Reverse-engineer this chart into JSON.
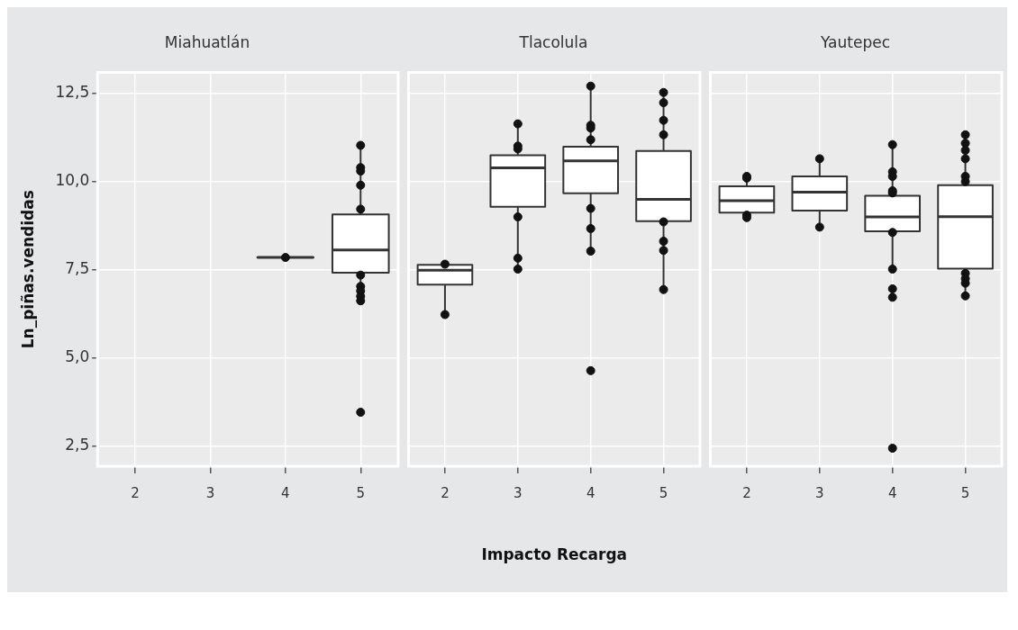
{
  "chart_data": [
    {
      "type": "box",
      "title": "Miahuatlán",
      "ylabel": "Ln_piñas.vendidas",
      "categories": [
        "2",
        "3",
        "4",
        "5"
      ],
      "ylim": [
        1.93,
        13.1
      ],
      "yticks": [
        {
          "value": 2.5,
          "label": "2,5"
        },
        {
          "value": 5,
          "label": "5,0"
        },
        {
          "value": 7.5,
          "label": "7,5"
        },
        {
          "value": 10,
          "label": "10,0"
        },
        {
          "value": 12.5,
          "label": "12,5"
        }
      ],
      "grid": true,
      "boxes": [
        null,
        null,
        {
          "low": 7.85,
          "q1": 7.85,
          "median": 7.85,
          "q3": 7.85,
          "high": 7.85,
          "outliers": [
            7.85
          ]
        },
        {
          "low": 6.62,
          "q1": 7.42,
          "median": 8.06,
          "q3": 9.07,
          "high": 11.03,
          "outliers": [
            11.03,
            10.4,
            10.3,
            9.9,
            9.22,
            7.35,
            7.03,
            6.9,
            6.75,
            6.62,
            3.46
          ]
        }
      ]
    },
    {
      "type": "box",
      "title": "Tlacolula",
      "xlabel": "Impacto Recarga",
      "categories": [
        "2",
        "3",
        "4",
        "5"
      ],
      "ylim": [
        1.93,
        13.1
      ],
      "yticks": [
        {
          "value": 2.5,
          "label": null
        },
        {
          "value": 5,
          "label": null
        },
        {
          "value": 7.5,
          "label": null
        },
        {
          "value": 10,
          "label": null
        },
        {
          "value": 12.5,
          "label": null
        }
      ],
      "grid": true,
      "tick_labels": "x",
      "boxes": [
        {
          "low": 6.23,
          "q1": 7.08,
          "median": 7.49,
          "q3": 7.64,
          "high": 7.64,
          "outliers": [
            7.66,
            6.23
          ]
        },
        {
          "low": 7.52,
          "q1": 9.29,
          "median": 10.39,
          "q3": 10.75,
          "high": 11.64,
          "outliers": [
            11.64,
            11.01,
            10.93,
            9.0,
            7.83,
            7.52
          ]
        },
        {
          "low": 8.03,
          "q1": 9.67,
          "median": 10.59,
          "q3": 10.99,
          "high": 12.71,
          "outliers": [
            12.71,
            11.6,
            11.52,
            11.19,
            9.24,
            8.67,
            8.03,
            4.64
          ]
        },
        {
          "low": 6.94,
          "q1": 8.88,
          "median": 9.5,
          "q3": 10.87,
          "high": 12.53,
          "outliers": [
            12.53,
            12.24,
            11.74,
            11.33,
            8.86,
            8.31,
            8.05,
            6.94
          ]
        }
      ]
    },
    {
      "type": "box",
      "title": "Yautepec",
      "categories": [
        "2",
        "3",
        "4",
        "5"
      ],
      "ylim": [
        1.93,
        13.1
      ],
      "yticks": [
        {
          "value": 2.5,
          "label": null
        },
        {
          "value": 5,
          "label": null
        },
        {
          "value": 7.5,
          "label": null
        },
        {
          "value": 10,
          "label": null
        },
        {
          "value": 12.5,
          "label": null
        }
      ],
      "grid": true,
      "tick_labels": "x",
      "boxes": [
        {
          "low": 8.98,
          "q1": 9.12,
          "median": 9.46,
          "q3": 9.87,
          "high": 10.15,
          "outliers": [
            10.15,
            10.1,
            9.05,
            8.98
          ]
        },
        {
          "low": 8.71,
          "q1": 9.18,
          "median": 9.7,
          "q3": 10.15,
          "high": 10.65,
          "outliers": [
            10.65,
            8.71
          ]
        },
        {
          "low": 7.52,
          "q1": 8.59,
          "median": 9.0,
          "q3": 9.6,
          "high": 11.05,
          "outliers": [
            11.05,
            10.28,
            10.15,
            9.74,
            9.68,
            8.56,
            7.52,
            6.96,
            6.72,
            2.44
          ]
        },
        {
          "low": 6.76,
          "q1": 7.53,
          "median": 9.01,
          "q3": 9.9,
          "high": 11.33,
          "outliers": [
            11.33,
            11.09,
            10.89,
            10.65,
            10.15,
            10.0,
            7.4,
            7.25,
            7.12,
            6.76
          ]
        }
      ]
    }
  ]
}
